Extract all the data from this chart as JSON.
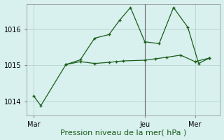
{
  "title": "Pression niveau de la mer( hPa )",
  "bg_color": "#d8f0ee",
  "grid_color": "#bcd8d4",
  "line_color": "#1a5e1a",
  "ylim": [
    1013.6,
    1016.7
  ],
  "yticks": [
    1014,
    1015,
    1016
  ],
  "xlim": [
    -0.5,
    26.5
  ],
  "line1_x": [
    0.5,
    1.5,
    5,
    7,
    9,
    11,
    12,
    13,
    16,
    17.5,
    19,
    21,
    23,
    25
  ],
  "line1_y": [
    1014.15,
    1013.88,
    1015.02,
    1015.1,
    1015.05,
    1015.08,
    1015.1,
    1015.12,
    1015.14,
    1015.18,
    1015.22,
    1015.28,
    1015.1,
    1015.2
  ],
  "line2_x": [
    5,
    7,
    9,
    11,
    12.5,
    14,
    16,
    18,
    20,
    22,
    23.5,
    25
  ],
  "line2_y": [
    1015.02,
    1015.15,
    1015.75,
    1015.85,
    1016.25,
    1016.6,
    1015.65,
    1015.6,
    1016.6,
    1016.05,
    1015.05,
    1015.2
  ],
  "vline_x": 16,
  "vline_color": "#666666",
  "xtick_positions": [
    0.5,
    16,
    23
  ],
  "xtick_labels": [
    "Mar",
    "Jeu",
    "Mer"
  ],
  "ytick_fontsize": 7,
  "xtick_fontsize": 7,
  "xlabel_fontsize": 8
}
